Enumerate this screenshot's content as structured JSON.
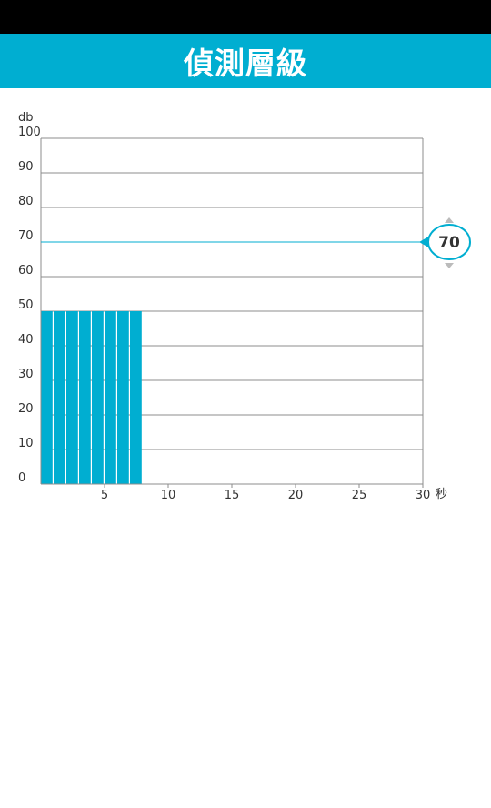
{
  "status_bar": {},
  "header": {
    "title": "偵測層級"
  },
  "chart_data": {
    "type": "bar",
    "y_unit": "db",
    "x_unit": "秒",
    "ylim": [
      0,
      100
    ],
    "xlim": [
      0,
      30
    ],
    "y_ticks": [
      0,
      10,
      20,
      30,
      40,
      50,
      60,
      70,
      80,
      90,
      100
    ],
    "x_ticks": [
      5,
      10,
      15,
      20,
      25,
      30
    ],
    "grid": true,
    "x": [
      0.5,
      1.5,
      2.5,
      3.5,
      4.5,
      5.5,
      6.5,
      7.5
    ],
    "values": [
      50,
      50,
      50,
      50,
      50,
      50,
      50,
      50
    ],
    "bar_color": "#00aed1",
    "threshold": {
      "value": 70,
      "label": "70",
      "color": "#00aed1"
    }
  }
}
